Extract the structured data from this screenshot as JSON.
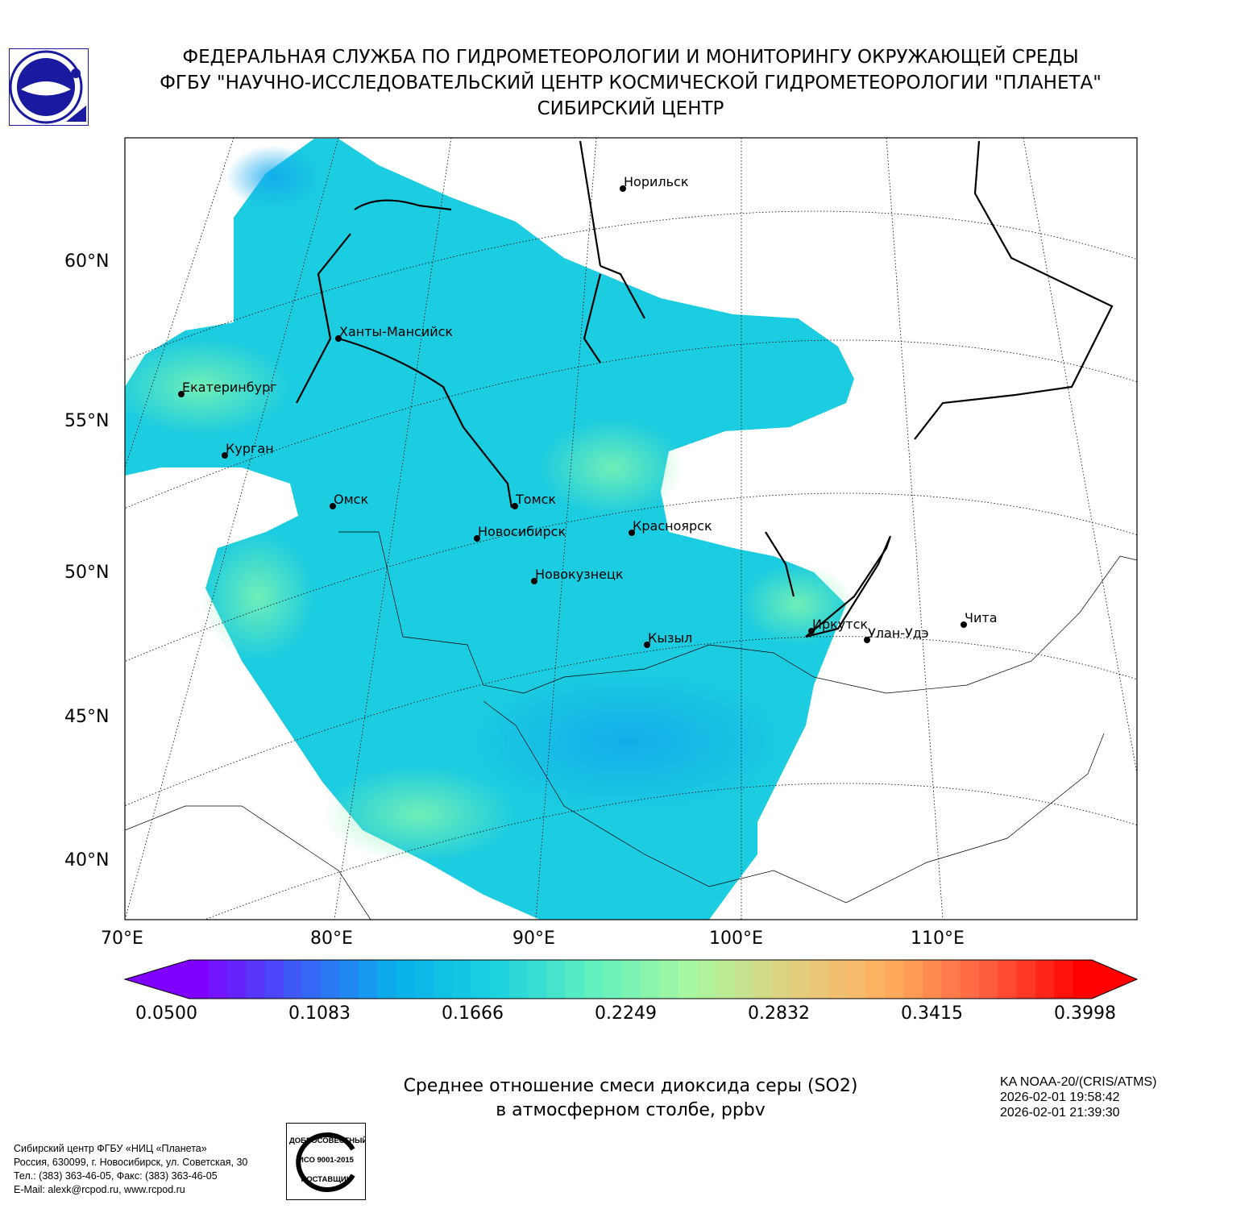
{
  "header": {
    "line1": "ФЕДЕРАЛЬНАЯ СЛУЖБА ПО ГИДРОМЕТЕОРОЛОГИИ И МОНИТОРИНГУ ОКРУЖАЮЩЕЙ СРЕДЫ",
    "line2": "ФГБУ \"НАУЧНО-ИССЛЕДОВАТЕЛЬСКИЙ ЦЕНТР КОСМИЧЕСКОЙ ГИДРОМЕТЕОРОЛОГИИ \"ПЛАНЕТА\"",
    "line3": "СИБИРСКИЙ ЦЕНТР"
  },
  "map": {
    "lat_labels": [
      "60°N",
      "55°N",
      "50°N",
      "45°N",
      "40°N"
    ],
    "lon_labels": [
      "70°E",
      "80°E",
      "90°E",
      "100°E",
      "110°E"
    ],
    "cities": [
      "Норильск",
      "Ханты-Мансийск",
      "Екатеринбург",
      "Курган",
      "Омск",
      "Томск",
      "Новосибирск",
      "Красноярск",
      "Новокузнецк",
      "Иркутск",
      "Улан-Удэ",
      "Чита",
      "Кызыл"
    ]
  },
  "colorbar": {
    "ticks": [
      "0.0500",
      "0.1083",
      "0.1666",
      "0.2249",
      "0.2832",
      "0.3415",
      "0.3998"
    ],
    "min": 0.05,
    "max": 0.3998,
    "colors": [
      "#7f00ff",
      "#3c5cf8",
      "#08b0ea",
      "#1ad0e0",
      "#60f0c0",
      "#a8f8a0",
      "#e0d080",
      "#ffb060",
      "#ff6040",
      "#ff0000"
    ]
  },
  "title": {
    "line1": "Среднее отношение смеси диоксида серы (SO2)",
    "line2": "в атмосферном столбе, ppbv"
  },
  "satellite": {
    "name": "KA NOAA-20/(CRIS/ATMS)",
    "start": "2026-02-01 19:58:42",
    "end": "2026-02-01 21:39:30"
  },
  "footer": {
    "org": "Сибирский центр ФГБУ «НИЦ «Планета»",
    "address": "Россия, 630099, г. Новосибирск, ул. Советская, 30",
    "phone": "Тел.: (383) 363-46-05, Факс: (383) 363-46-05",
    "email": "E-Mail: alexk@rcpod.ru, www.rcpod.ru",
    "iso_badge": "ДОБРОСОВЕСТНЫЙ ИСО 9001-2015 ПОСТАВЩИК"
  }
}
